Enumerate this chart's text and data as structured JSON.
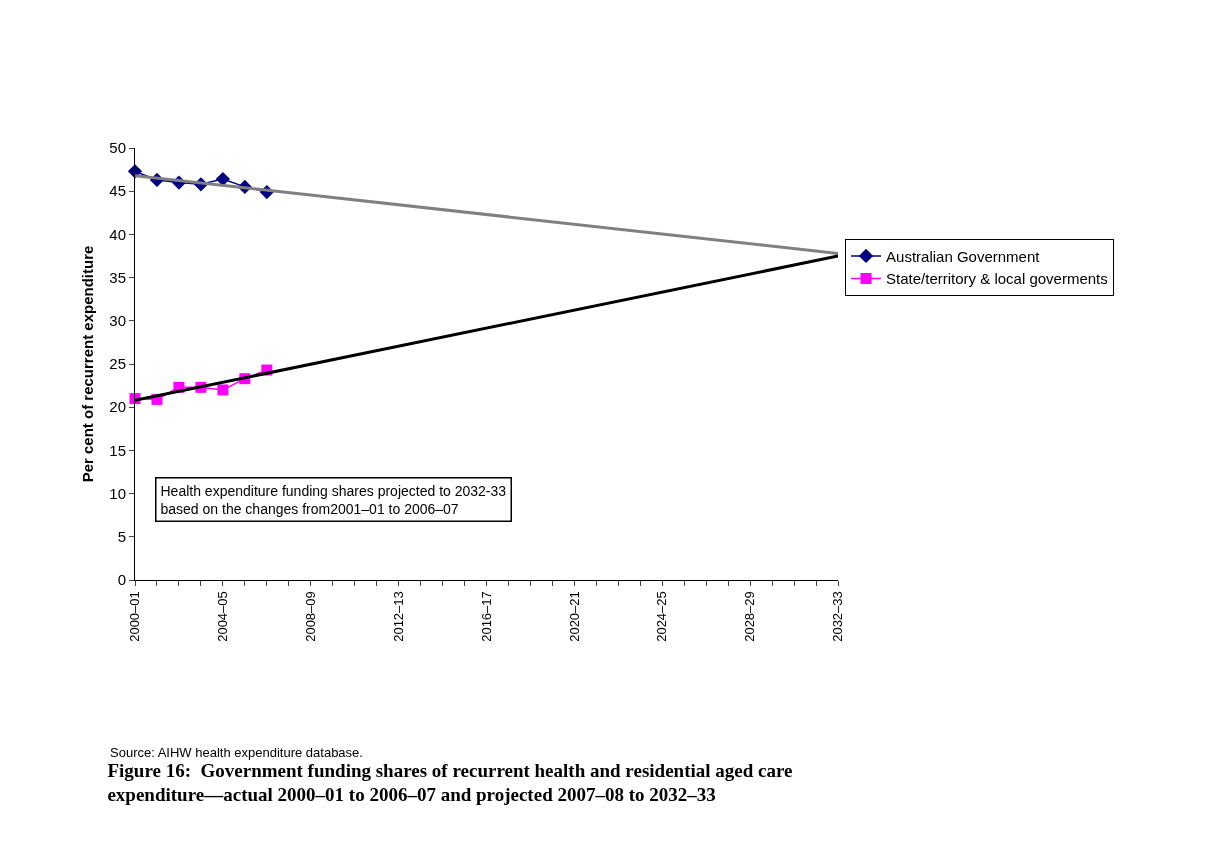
{
  "chart_data": {
    "type": "line",
    "title": "Figure 16:  Government funding shares of recurrent health and residential aged care\nexpenditure—actual 2000–01 to 2006–07 and projected 2007–08 to 2032–33",
    "ylabel": "Per cent of recurrent expenditure",
    "categories": [
      "2000–01",
      null,
      null,
      null,
      "2004–05",
      null,
      null,
      null,
      "2008–09",
      null,
      null,
      null,
      "2012–13",
      null,
      null,
      null,
      "2016–17",
      null,
      null,
      null,
      "2020–21",
      null,
      null,
      null,
      "2024–25",
      null,
      null,
      null,
      "2028–29",
      null,
      null,
      null,
      "2032–33"
    ],
    "series": [
      {
        "name": "Australian Government",
        "color": "#000080",
        "marker": "diamond",
        "values": [
          47.3,
          46.3,
          46.0,
          45.8,
          46.4,
          45.5,
          44.9,
          null,
          null,
          null,
          null,
          null,
          null,
          null,
          null,
          null,
          null,
          null,
          null,
          null,
          null,
          null,
          null,
          null,
          null,
          null,
          null,
          null,
          null,
          null,
          null,
          null,
          null
        ]
      },
      {
        "name": "State/territory & local goverments",
        "color": "#ff00ff",
        "marker": "square",
        "values": [
          21.0,
          20.9,
          22.3,
          22.3,
          22.0,
          23.3,
          24.3,
          null,
          null,
          null,
          null,
          null,
          null,
          null,
          null,
          null,
          null,
          null,
          null,
          null,
          null,
          null,
          null,
          null,
          null,
          null,
          null,
          null,
          null,
          null,
          null,
          null,
          null
        ]
      },
      {
        "color": "#808080",
        "marker": "none",
        "x": [
          "2000–01",
          "2032–33"
        ],
        "values": [
          46.8,
          37.8
        ]
      },
      {
        "color": "#000000",
        "marker": "none",
        "x": [
          "2000–01",
          "2032–33"
        ],
        "values": [
          20.8,
          37.5
        ]
      }
    ],
    "ylim": [
      0,
      50
    ],
    "yticks": [
      0,
      5,
      10,
      15,
      20,
      25,
      30,
      35,
      40,
      45,
      50
    ],
    "legend": "right",
    "annotations": [
      "Health expenditure funding shares projected to 2032-33\nbased on the changes from2001–01 to 2006–07",
      "Source: AIHW health expenditure database."
    ]
  }
}
